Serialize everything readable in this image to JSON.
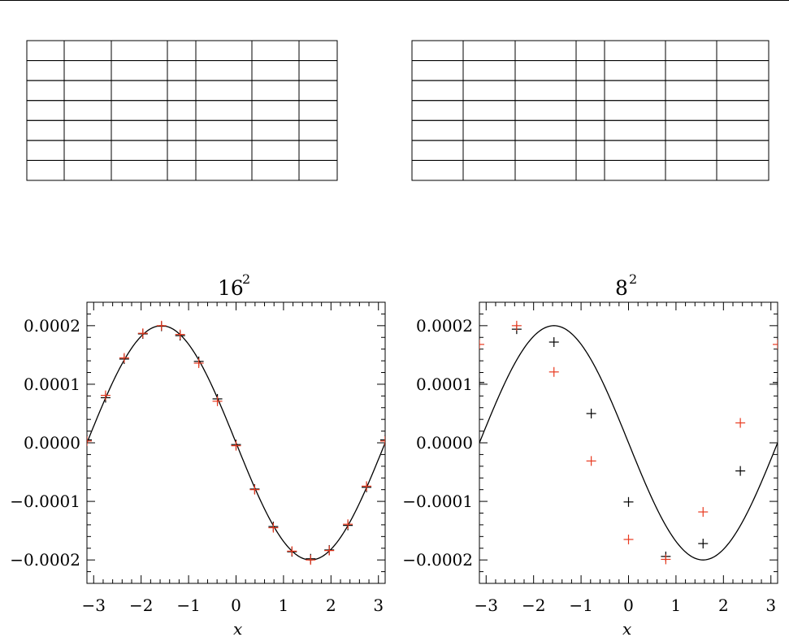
{
  "tables": [
    {
      "rows": 7,
      "cols": 7
    },
    {
      "rows": 7,
      "cols": 7
    }
  ],
  "chart_data": [
    {
      "type": "scatter",
      "title_base": "16",
      "title_exp": "2",
      "xlabel": "x",
      "ylabel": "",
      "xlim": [
        -3.1416,
        3.1416
      ],
      "ylim": [
        -0.00024,
        0.00024
      ],
      "xticks": [
        -3,
        -2,
        -1,
        0,
        1,
        2,
        3
      ],
      "xtick_labels": [
        "−3",
        "−2",
        "−1",
        "0",
        "1",
        "2",
        "3"
      ],
      "yticks": [
        0.0002,
        0.0001,
        0.0,
        -0.0001,
        -0.0002
      ],
      "ytick_labels": [
        "0.0002",
        "0.0001",
        "0.0000",
        "−0.0001",
        "−0.0002"
      ],
      "curve": {
        "type": "line",
        "function": "-0.0002*sin(x)",
        "color": "#000000"
      },
      "series": [
        {
          "color": "#000000",
          "x": [
            -3.1416,
            -2.7489,
            -2.3562,
            -1.9635,
            -1.5708,
            -1.1781,
            -0.7854,
            -0.3927,
            0.0,
            0.3927,
            0.7854,
            1.1781,
            1.5708,
            1.9635,
            2.3562,
            2.7489,
            3.1416
          ],
          "y": [
            5e-06,
            7.7e-05,
            0.000143,
            0.000186,
            0.000199,
            0.000183,
            0.000139,
            7.5e-05,
            -3e-06,
            -7.9e-05,
            -0.000143,
            -0.000186,
            -0.000198,
            -0.000183,
            -0.000141,
            -7.6e-05,
            5e-06
          ]
        },
        {
          "color": "#e8391f",
          "x": [
            -3.1416,
            -2.7489,
            -2.3562,
            -1.9635,
            -1.5708,
            -1.1781,
            -0.7854,
            -0.3927,
            0.0,
            0.3927,
            0.7854,
            1.1781,
            1.5708,
            1.9635,
            2.3562,
            2.7489,
            3.1416
          ],
          "y": [
            3e-06,
            8.1e-05,
            0.000145,
            0.000187,
            0.0002,
            0.000185,
            0.000136,
            7.1e-05,
            -5e-06,
            -8e-05,
            -0.000145,
            -0.000185,
            -0.0002,
            -0.000184,
            -0.000139,
            -7.4e-05,
            3e-06
          ]
        }
      ]
    },
    {
      "type": "scatter",
      "title_base": "8",
      "title_exp": "2",
      "xlabel": "x",
      "ylabel": "",
      "xlim": [
        -3.1416,
        3.1416
      ],
      "ylim": [
        -0.00024,
        0.00024
      ],
      "xticks": [
        -3,
        -2,
        -1,
        0,
        1,
        2,
        3
      ],
      "xtick_labels": [
        "−3",
        "−2",
        "−1",
        "0",
        "1",
        "2",
        "3"
      ],
      "yticks": [
        0.0002,
        0.0001,
        0.0,
        -0.0001,
        -0.0002
      ],
      "ytick_labels": [
        "0.0002",
        "0.0001",
        "0.0000",
        "−0.0001",
        "−0.0002"
      ],
      "curve": {
        "type": "line",
        "function": "-0.0002*sin(x)",
        "color": "#000000"
      },
      "series": [
        {
          "color": "#000000",
          "x": [
            -3.1416,
            -2.3562,
            -1.5708,
            -0.7854,
            0.0,
            0.7854,
            1.5708,
            2.3562,
            3.1416
          ],
          "y": [
            0.000103,
            0.000194,
            0.000172,
            5e-05,
            -0.000101,
            -0.000194,
            -0.000172,
            -4.8e-05,
            0.000103
          ]
        },
        {
          "color": "#e8391f",
          "x": [
            -3.1416,
            -2.3562,
            -1.5708,
            -0.7854,
            0.0,
            0.7854,
            1.5708,
            2.3562,
            3.1416
          ],
          "y": [
            0.000168,
            0.0002,
            0.000121,
            -3.1e-05,
            -0.000165,
            -0.000199,
            -0.000118,
            3.4e-05,
            0.000168
          ]
        }
      ]
    }
  ]
}
